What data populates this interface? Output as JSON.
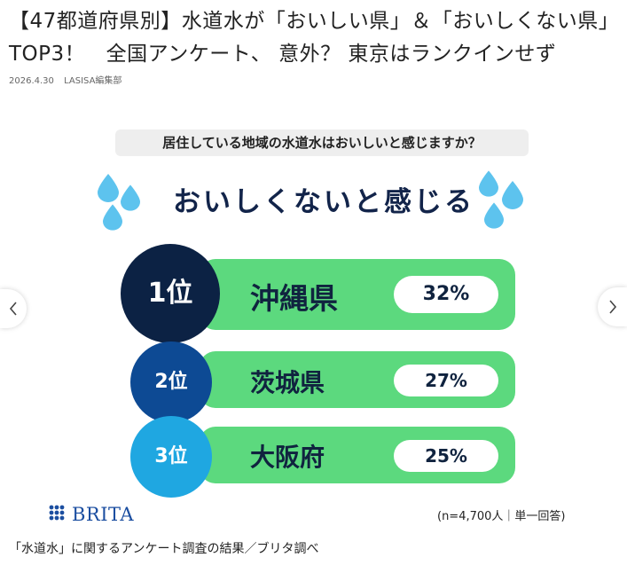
{
  "article": {
    "headline": "【47都道府県別】水道水が「おいしい県」＆「おいしくない県」TOP3！　全国アンケート、 意外？ 東京はランクインせず",
    "date": "2026.4.30",
    "publisher": "LASISA編集部"
  },
  "infographic": {
    "question": "居住している地域の水道水はおいしいと感じますか？",
    "title": "おいしくないと感じる",
    "rankings": [
      {
        "rank": "1位",
        "prefecture": "沖縄県",
        "percent": "32%",
        "color": "#0c2244"
      },
      {
        "rank": "2位",
        "prefecture": "茨城県",
        "percent": "27%",
        "color": "#0d4a94"
      },
      {
        "rank": "3位",
        "prefecture": "大阪府",
        "percent": "25%",
        "color": "#1fa7e1"
      }
    ],
    "brand": "BRITA",
    "note": "(n=4,700人｜単一回答)",
    "colors": {
      "bar": "#5cd97e",
      "drop": "#5dc3ee",
      "title": "#12244a"
    }
  },
  "caption": "「水道水」に関するアンケート調査の結果／ブリタ調べ",
  "carousel": {
    "prev_icon": "chevron-left-icon",
    "next_icon": "chevron-right-icon"
  }
}
